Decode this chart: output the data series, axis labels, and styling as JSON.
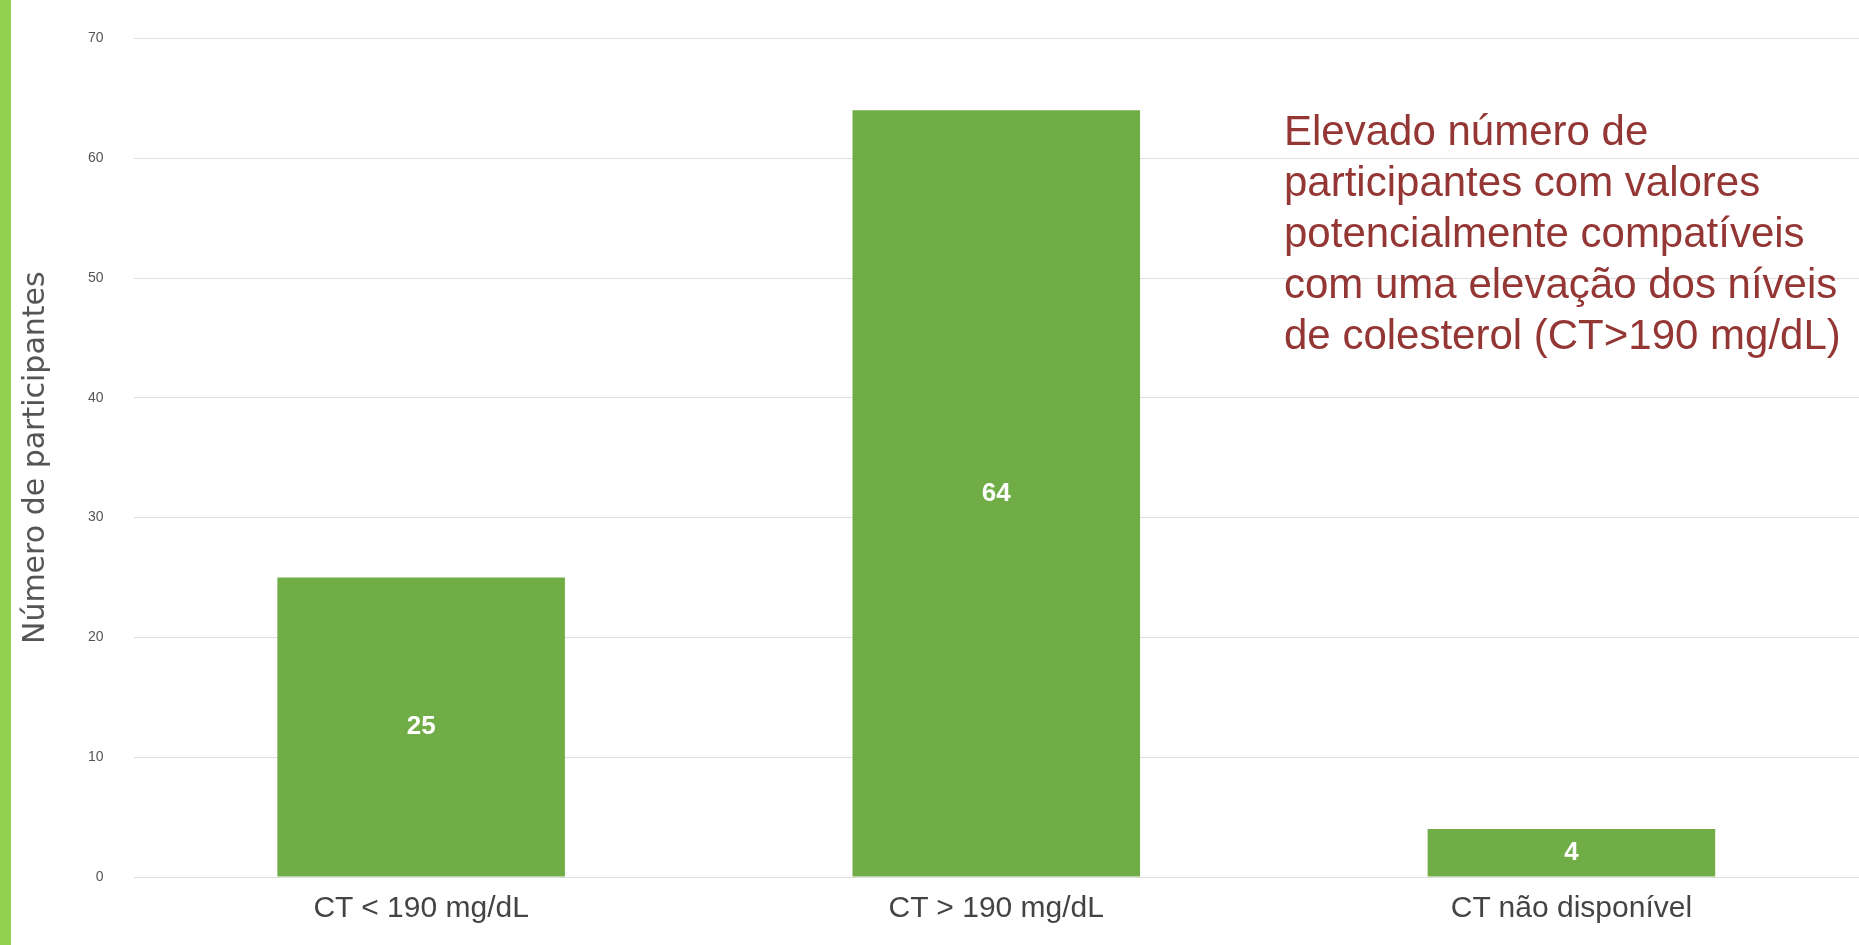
{
  "chart_data": {
    "type": "bar",
    "ylabel": "Número de participantes",
    "categories": [
      "CT < 190 mg/dL",
      "CT > 190 mg/dL",
      "CT não disponível"
    ],
    "values": [
      25,
      64,
      4
    ],
    "color": "#70ad47",
    "data_labels": true,
    "ylim": [
      0,
      70
    ],
    "yticks": [
      0,
      10,
      20,
      30,
      40,
      50,
      60,
      70
    ],
    "grid": "y",
    "legend": false,
    "annotations": [
      "Elevado número de participantes com valores potencialmente compatíveis com uma elevação dos níveis de colesterol (CT>190 mg/dL)"
    ]
  }
}
